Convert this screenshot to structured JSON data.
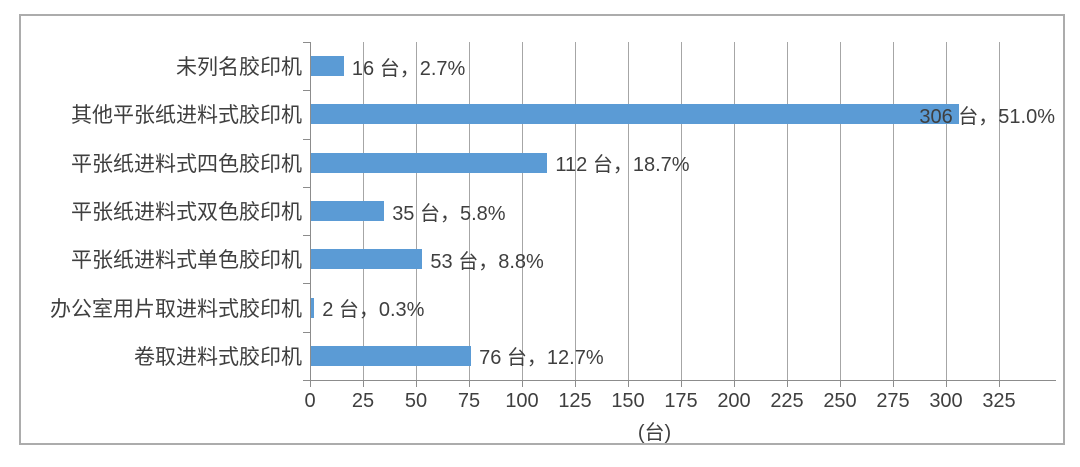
{
  "chart_data": {
    "type": "bar",
    "orientation": "horizontal",
    "title": "",
    "categories": [
      "未列名胶印机",
      "其他平张纸进料式胶印机",
      "平张纸进料式四色胶印机",
      "平张纸进料式双色胶印机",
      "平张纸进料式单色胶印机",
      "办公室用片取进料式胶印机",
      "卷取进料式胶印机"
    ],
    "values": [
      16,
      306,
      112,
      35,
      53,
      2,
      76
    ],
    "percents": [
      "2.7%",
      "51.0%",
      "18.7%",
      "5.8%",
      "8.8%",
      "0.3%",
      "12.7%"
    ],
    "data_labels": [
      "16 台，2.7%",
      "306 台，51.0%",
      "112 台，18.7%",
      "35 台，5.8%",
      "53 台，8.8%",
      "2 台，0.3%",
      "76 台，12.7%"
    ],
    "unit": "台",
    "xlabel": "(台)",
    "x_ticks": [
      "0",
      "25",
      "50",
      "75",
      "100",
      "125",
      "150",
      "175",
      "200",
      "225",
      "250",
      "275",
      "300",
      "325"
    ],
    "xlim": [
      0,
      325
    ],
    "x_tick_step": 25,
    "grid": true,
    "legend": false,
    "colors": {
      "bar": "#5B9BD5",
      "gridline": "#A6A6A6",
      "axis": "#8C8C8C",
      "text": "#3F3F3F",
      "frame_border": "#ACACAC",
      "background": "#FFFFFF"
    }
  }
}
